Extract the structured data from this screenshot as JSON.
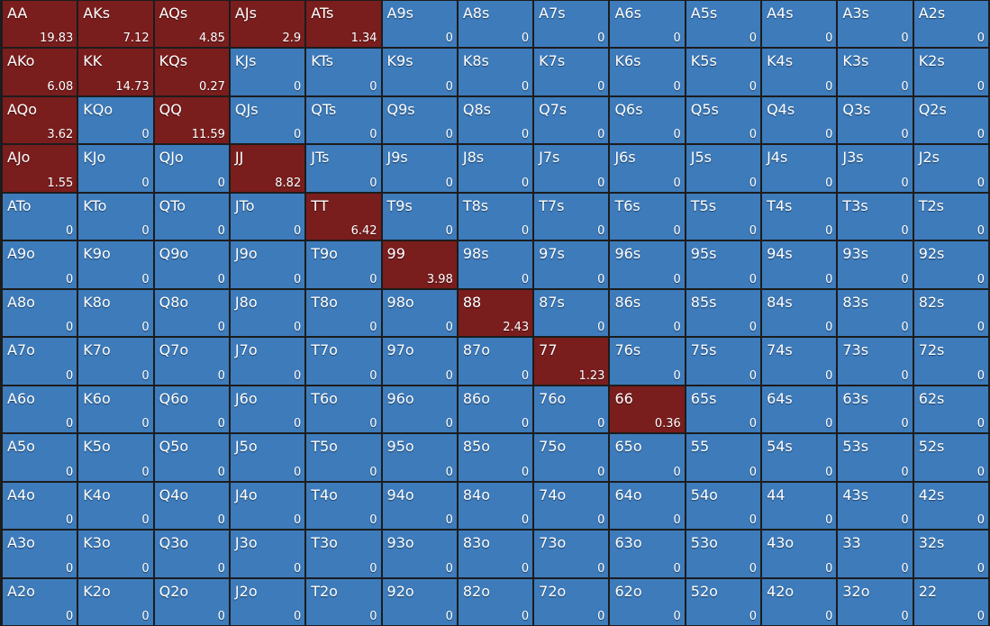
{
  "grid": {
    "hands": [
      [
        "AA",
        "AKs",
        "AQs",
        "AJs",
        "ATs",
        "A9s",
        "A8s",
        "A7s",
        "A6s",
        "A5s",
        "A4s",
        "A3s",
        "A2s"
      ],
      [
        "AKo",
        "KK",
        "KQs",
        "KJs",
        "KTs",
        "K9s",
        "K8s",
        "K7s",
        "K6s",
        "K5s",
        "K4s",
        "K3s",
        "K2s"
      ],
      [
        "AQo",
        "KQo",
        "QQ",
        "QJs",
        "QTs",
        "Q9s",
        "Q8s",
        "Q7s",
        "Q6s",
        "Q5s",
        "Q4s",
        "Q3s",
        "Q2s"
      ],
      [
        "AJo",
        "KJo",
        "QJo",
        "JJ",
        "JTs",
        "J9s",
        "J8s",
        "J7s",
        "J6s",
        "J5s",
        "J4s",
        "J3s",
        "J2s"
      ],
      [
        "ATo",
        "KTo",
        "QTo",
        "JTo",
        "TT",
        "T9s",
        "T8s",
        "T7s",
        "T6s",
        "T5s",
        "T4s",
        "T3s",
        "T2s"
      ],
      [
        "A9o",
        "K9o",
        "Q9o",
        "J9o",
        "T9o",
        "99",
        "98s",
        "97s",
        "96s",
        "95s",
        "94s",
        "93s",
        "92s"
      ],
      [
        "A8o",
        "K8o",
        "Q8o",
        "J8o",
        "T8o",
        "98o",
        "88",
        "87s",
        "86s",
        "85s",
        "84s",
        "83s",
        "82s"
      ],
      [
        "A7o",
        "K7o",
        "Q7o",
        "J7o",
        "T7o",
        "97o",
        "87o",
        "77",
        "76s",
        "75s",
        "74s",
        "73s",
        "72s"
      ],
      [
        "A6o",
        "K6o",
        "Q6o",
        "J6o",
        "T6o",
        "96o",
        "86o",
        "76o",
        "66",
        "65s",
        "64s",
        "63s",
        "62s"
      ],
      [
        "A5o",
        "K5o",
        "Q5o",
        "J5o",
        "T5o",
        "95o",
        "85o",
        "75o",
        "65o",
        "55",
        "54s",
        "53s",
        "52s"
      ],
      [
        "A4o",
        "K4o",
        "Q4o",
        "J4o",
        "T4o",
        "94o",
        "84o",
        "74o",
        "64o",
        "54o",
        "44",
        "43s",
        "42s"
      ],
      [
        "A3o",
        "K3o",
        "Q3o",
        "J3o",
        "T3o",
        "93o",
        "83o",
        "73o",
        "63o",
        "53o",
        "43o",
        "33",
        "32s"
      ],
      [
        "A2o",
        "K2o",
        "Q2o",
        "J2o",
        "T2o",
        "92o",
        "82o",
        "72o",
        "62o",
        "52o",
        "42o",
        "32o",
        "22"
      ]
    ],
    "values": [
      [
        19.83,
        7.12,
        4.85,
        2.9,
        1.34,
        0,
        0,
        0,
        0,
        0,
        0,
        0,
        0
      ],
      [
        6.08,
        14.73,
        0.27,
        0,
        0,
        0,
        0,
        0,
        0,
        0,
        0,
        0,
        0
      ],
      [
        3.62,
        0,
        11.59,
        0,
        0,
        0,
        0,
        0,
        0,
        0,
        0,
        0,
        0
      ],
      [
        1.55,
        0,
        0,
        8.82,
        0,
        0,
        0,
        0,
        0,
        0,
        0,
        0,
        0
      ],
      [
        0,
        0,
        0,
        0,
        6.42,
        0,
        0,
        0,
        0,
        0,
        0,
        0,
        0
      ],
      [
        0,
        0,
        0,
        0,
        0,
        3.98,
        0,
        0,
        0,
        0,
        0,
        0,
        0
      ],
      [
        0,
        0,
        0,
        0,
        0,
        0,
        2.43,
        0,
        0,
        0,
        0,
        0,
        0
      ],
      [
        0,
        0,
        0,
        0,
        0,
        0,
        0,
        1.23,
        0,
        0,
        0,
        0,
        0
      ],
      [
        0,
        0,
        0,
        0,
        0,
        0,
        0,
        0,
        0.36,
        0,
        0,
        0,
        0
      ],
      [
        0,
        0,
        0,
        0,
        0,
        0,
        0,
        0,
        0,
        0,
        0,
        0,
        0
      ],
      [
        0,
        0,
        0,
        0,
        0,
        0,
        0,
        0,
        0,
        0,
        0,
        0,
        0
      ],
      [
        0,
        0,
        0,
        0,
        0,
        0,
        0,
        0,
        0,
        0,
        0,
        0,
        0
      ],
      [
        0,
        0,
        0,
        0,
        0,
        0,
        0,
        0,
        0,
        0,
        0,
        0,
        0
      ]
    ]
  }
}
